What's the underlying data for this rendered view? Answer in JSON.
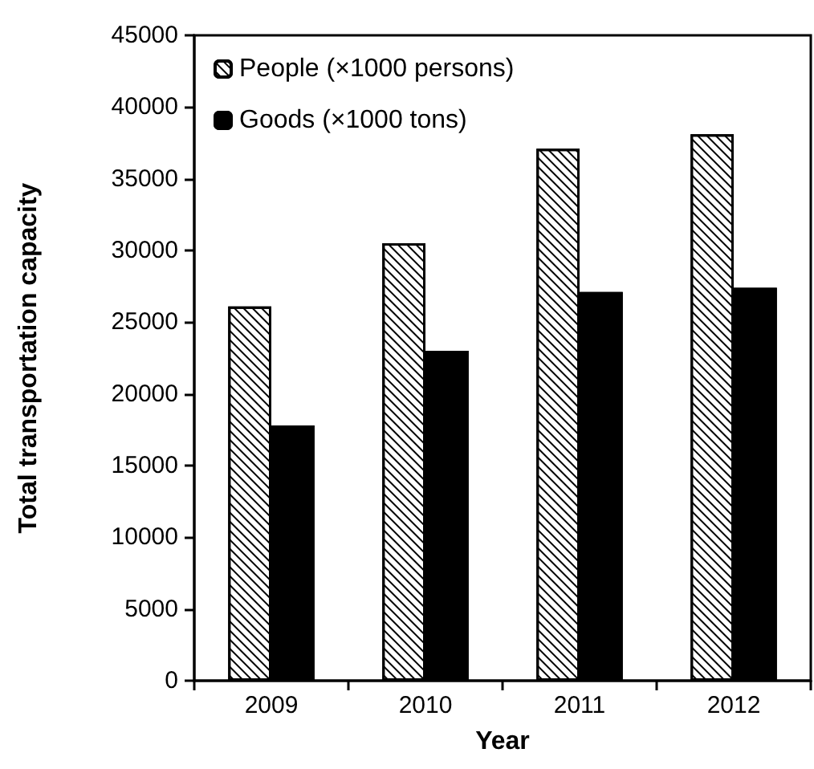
{
  "chart_data": {
    "type": "bar",
    "xlabel": "Year",
    "ylabel": "Total transportation capacity",
    "categories": [
      "2009",
      "2010",
      "2011",
      "2012"
    ],
    "series": [
      {
        "name": "People (×1000 persons)",
        "color": "#ffffff",
        "values": [
          26100,
          30500,
          37100,
          38100
        ]
      },
      {
        "name": "Goods (×1000 tons)",
        "color": "#000000",
        "values": [
          17800,
          23000,
          27100,
          27400
        ]
      }
    ],
    "ylim": [
      0,
      45000
    ],
    "yticks": [
      0,
      5000,
      10000,
      15000,
      20000,
      25000,
      30000,
      35000,
      40000,
      45000
    ],
    "grid": false,
    "legend": "top left"
  }
}
